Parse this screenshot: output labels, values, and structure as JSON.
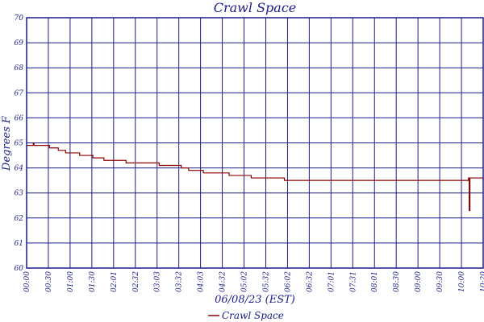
{
  "chart_data": {
    "type": "line",
    "title": "Crawl Space",
    "xlabel": "06/08/23 (EST)",
    "ylabel": "Degrees F",
    "ylim": [
      60,
      70
    ],
    "yticks": [
      "60",
      "61",
      "62",
      "63",
      "64",
      "65",
      "66",
      "67",
      "68",
      "69",
      "70"
    ],
    "xticks": [
      "00:00",
      "00:30",
      "01:00",
      "01:30",
      "02:01",
      "02:32",
      "03:03",
      "03:32",
      "04:03",
      "04:32",
      "05:02",
      "05:32",
      "06:02",
      "06:32",
      "07:01",
      "07:31",
      "08:01",
      "08:30",
      "09:00",
      "09:30",
      "10:00",
      "10:20"
    ],
    "grid": true,
    "legend": "bottom-center",
    "series": [
      {
        "name": "Crawl Space",
        "color": "#8b0000",
        "x": [
          0,
          9,
          10,
          29,
          31,
          40,
          43,
          49,
          53,
          71,
          72,
          75,
          90,
          95,
          105,
          110,
          115,
          125,
          130,
          135,
          145,
          150,
          155,
          160,
          165,
          170,
          180,
          190,
          200,
          210,
          215,
          220,
          230,
          240,
          250,
          260,
          265,
          275,
          285,
          290,
          300,
          305,
          320,
          330,
          340,
          350,
          360,
          370,
          380,
          390,
          400,
          420,
          440,
          460,
          480,
          500,
          520,
          540,
          560,
          580,
          595,
          600,
          601,
          602,
          606,
          610,
          615,
          620
        ],
        "y": [
          64.9,
          65.0,
          64.9,
          64.9,
          64.8,
          64.8,
          64.7,
          64.7,
          64.6,
          64.6,
          64.5,
          64.5,
          64.4,
          64.4,
          64.3,
          64.3,
          64.3,
          64.3,
          64.3,
          64.2,
          64.2,
          64.2,
          64.2,
          64.2,
          64.2,
          64.2,
          64.1,
          64.1,
          64.1,
          64.0,
          64.0,
          63.9,
          63.9,
          63.8,
          63.8,
          63.8,
          63.8,
          63.7,
          63.7,
          63.7,
          63.7,
          63.6,
          63.6,
          63.6,
          63.6,
          63.5,
          63.5,
          63.5,
          63.5,
          63.5,
          63.5,
          63.5,
          63.5,
          63.5,
          63.5,
          63.5,
          63.5,
          63.5,
          63.5,
          63.5,
          63.5,
          63.6,
          62.3,
          63.6,
          63.6,
          63.6,
          63.6,
          63.5
        ]
      }
    ]
  }
}
